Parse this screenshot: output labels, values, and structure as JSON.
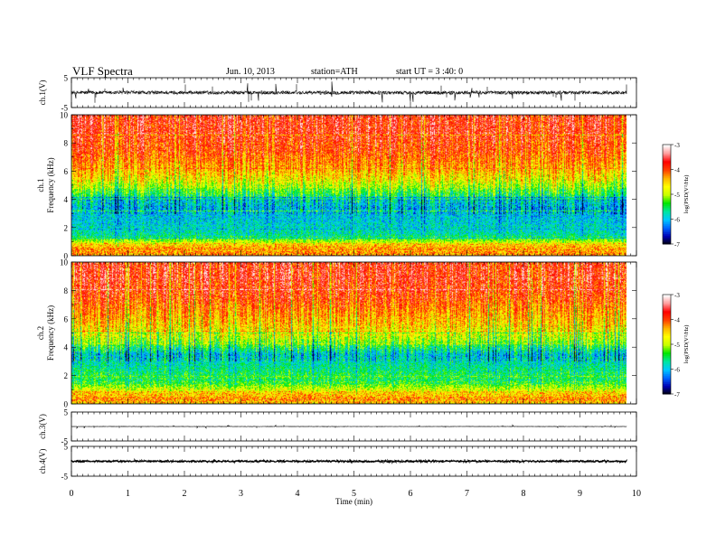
{
  "header": {
    "title": "VLF  Spectra",
    "date": "Jun. 10, 2013",
    "station": "station=ATH",
    "start": "start  UT  =   3  :40: 0"
  },
  "colors": {
    "spectrum_ramp": [
      "#000000",
      "#0000b4",
      "#0064ff",
      "#00c8ff",
      "#00e6a0",
      "#00e600",
      "#c8ff00",
      "#ffff00",
      "#ffb400",
      "#ff4000",
      "#ff0000",
      "#ff9a9a",
      "#ffffff"
    ],
    "trace": "#000000"
  },
  "chart_data": [
    {
      "type": "line",
      "name": "ch1-waveform",
      "ylabel": "ch.1(V)",
      "ylim": [
        -5,
        5
      ],
      "yticks": [
        "5",
        "-5"
      ],
      "xlim": [
        0,
        10
      ],
      "x_end": 9.82,
      "noise_level_v": 0.6,
      "spike_level_v": 2.5
    },
    {
      "type": "heatmap",
      "name": "ch1-spectrogram",
      "ylabel": "Frequency (kHz)",
      "channel_label": "ch.1",
      "ylim": [
        0,
        10
      ],
      "yticks": [
        "0",
        "2",
        "4",
        "6",
        "8",
        "10"
      ],
      "xlim": [
        0,
        10
      ],
      "x_end": 9.82,
      "colorbar": {
        "label": "log(PSD(V²/Hz)",
        "range": [
          -7,
          -3
        ],
        "ticks": [
          "-3",
          "-4",
          "-5",
          "-6",
          "-7"
        ]
      },
      "approx_log_psd_profile_khz": [
        {
          "f": 0.5,
          "v": -4.1
        },
        {
          "f": 1.5,
          "v": -5.7
        },
        {
          "f": 2.5,
          "v": -5.9
        },
        {
          "f": 3.5,
          "v": -6.0
        },
        {
          "f": 4.5,
          "v": -5.3
        },
        {
          "f": 5.5,
          "v": -4.6
        },
        {
          "f": 6.5,
          "v": -4.2
        },
        {
          "f": 7.5,
          "v": -3.9
        },
        {
          "f": 9.0,
          "v": -3.7
        }
      ]
    },
    {
      "type": "heatmap",
      "name": "ch2-spectrogram",
      "ylabel": "Frequency (kHz)",
      "channel_label": "ch.2",
      "ylim": [
        0,
        10
      ],
      "yticks": [
        "0",
        "2",
        "4",
        "6",
        "8",
        "10"
      ],
      "xlim": [
        0,
        10
      ],
      "x_end": 9.82,
      "colorbar": {
        "label": "log(PSD(V²/Hz)",
        "range": [
          -7,
          -3
        ],
        "ticks": [
          "-3",
          "-4",
          "-5",
          "-6",
          "-7"
        ]
      },
      "approx_log_psd_profile_khz": [
        {
          "f": 0.5,
          "v": -4.3
        },
        {
          "f": 1.5,
          "v": -5.3
        },
        {
          "f": 2.5,
          "v": -5.6
        },
        {
          "f": 3.5,
          "v": -5.9
        },
        {
          "f": 4.5,
          "v": -5.0
        },
        {
          "f": 5.5,
          "v": -4.5
        },
        {
          "f": 6.5,
          "v": -4.2
        },
        {
          "f": 7.5,
          "v": -3.9
        },
        {
          "f": 9.0,
          "v": -3.7
        }
      ]
    },
    {
      "type": "line",
      "name": "ch3-waveform",
      "ylabel": "ch.3(V)",
      "ylim": [
        -5,
        5
      ],
      "yticks": [
        "5",
        "-5"
      ],
      "xlim": [
        0,
        10
      ],
      "x_end": 9.82,
      "noise_level_v": 0.05,
      "spike_level_v": 0.4
    },
    {
      "type": "line",
      "name": "ch4-waveform",
      "ylabel": "ch.4(V)",
      "ylim": [
        -5,
        5
      ],
      "yticks": [
        "5",
        "-5"
      ],
      "xlim": [
        0,
        10
      ],
      "x_end": 9.82,
      "noise_level_v": 0.25,
      "spike_level_v": 0.3
    }
  ],
  "xaxis": {
    "label": "Time  (min)",
    "ticks": [
      "0",
      "1",
      "2",
      "3",
      "4",
      "5",
      "6",
      "7",
      "8",
      "9",
      "10"
    ]
  }
}
